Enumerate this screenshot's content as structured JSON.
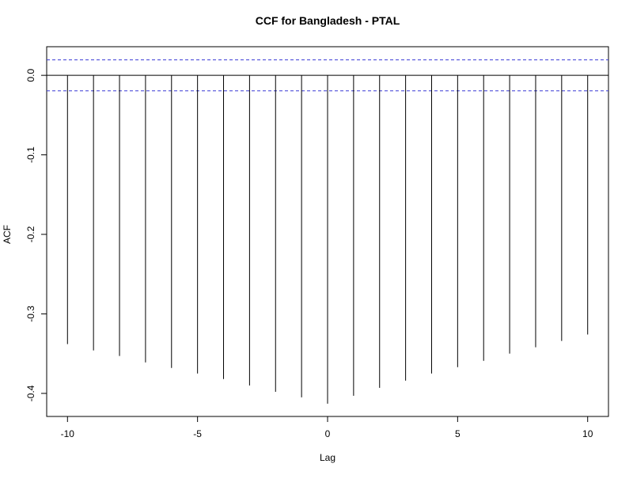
{
  "chart_data": {
    "type": "bar",
    "title": "CCF for Bangladesh - PTAL",
    "xlabel": "Lag",
    "ylabel": "ACF",
    "x": [
      -10,
      -9,
      -8,
      -7,
      -6,
      -5,
      -4,
      -3,
      -2,
      -1,
      0,
      1,
      2,
      3,
      4,
      5,
      6,
      7,
      8,
      9,
      10
    ],
    "values": [
      -0.338,
      -0.346,
      -0.353,
      -0.361,
      -0.368,
      -0.375,
      -0.382,
      -0.39,
      -0.398,
      -0.405,
      -0.413,
      -0.403,
      -0.393,
      -0.384,
      -0.375,
      -0.367,
      -0.359,
      -0.35,
      -0.342,
      -0.334,
      -0.326
    ],
    "xlim": [
      -10.8,
      10.8
    ],
    "ylim": [
      -0.429,
      0.036
    ],
    "x_ticks": [
      -10,
      -5,
      0,
      5,
      10
    ],
    "x_tick_labels": [
      "-10",
      "-5",
      "0",
      "5",
      "10"
    ],
    "y_ticks": [
      -0.4,
      -0.3,
      -0.2,
      -0.1,
      0.0
    ],
    "y_tick_labels": [
      "-0.4",
      "-0.3",
      "-0.2",
      "-0.1",
      "0.0"
    ],
    "confidence_bounds": [
      0.0195,
      -0.0195
    ],
    "zero_line": 0,
    "grid": false,
    "colors": {
      "lines": "#000000",
      "confidence": "#3a3ad6"
    }
  }
}
